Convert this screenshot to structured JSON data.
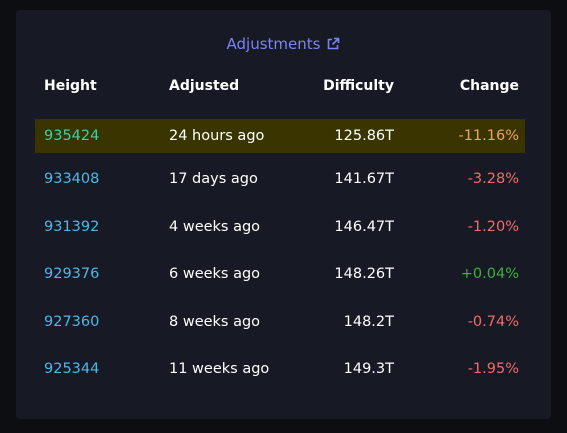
{
  "card": {
    "title": "Adjustments",
    "title_icon": "external-link-icon"
  },
  "table": {
    "headers": {
      "height": "Height",
      "adjusted": "Adjusted",
      "difficulty": "Difficulty",
      "change": "Change"
    },
    "rows": [
      {
        "height": "935424",
        "adjusted": "24 hours ago",
        "difficulty": "125.86T",
        "change": "-11.16%",
        "highlighted": true
      },
      {
        "height": "933408",
        "adjusted": "17 days ago",
        "difficulty": "141.67T",
        "change": "-3.28%"
      },
      {
        "height": "931392",
        "adjusted": "4 weeks ago",
        "difficulty": "146.47T",
        "change": "-1.20%"
      },
      {
        "height": "929376",
        "adjusted": "6 weeks ago",
        "difficulty": "148.26T",
        "change": "+0.04%"
      },
      {
        "height": "927360",
        "adjusted": "8 weeks ago",
        "difficulty": "148.2T",
        "change": "-0.74%"
      },
      {
        "height": "925344",
        "adjusted": "11 weeks ago",
        "difficulty": "149.3T",
        "change": "-1.95%"
      }
    ]
  },
  "colors": {
    "accent": "#7b83f2",
    "link": "#4db8e8",
    "negative": "#f06b6b",
    "positive": "#3fae3f",
    "highlight_bg": "#3a3400"
  }
}
